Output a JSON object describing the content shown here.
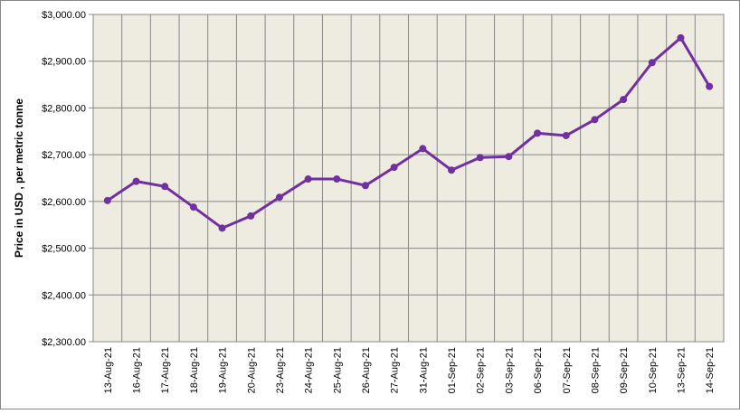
{
  "chart_data": {
    "type": "line",
    "y_axis_label": "Price in USD , per metric tonne",
    "categories": [
      "13-Aug-21",
      "16-Aug-21",
      "17-Aug-21",
      "18-Aug-21",
      "19-Aug-21",
      "20-Aug-21",
      "23-Aug-21",
      "24-Aug-21",
      "25-Aug-21",
      "26-Aug-21",
      "27-Aug-21",
      "31-Aug-21",
      "01-Sep-21",
      "02-Sep-21",
      "03-Sep-21",
      "06-Sep-21",
      "07-Sep-21",
      "08-Sep-21",
      "09-Sep-21",
      "10-Sep-21",
      "13-Sep-21",
      "14-Sep-21"
    ],
    "values": [
      2602,
      2643,
      2632,
      2588,
      2543,
      2569,
      2609,
      2648,
      2648,
      2634,
      2673,
      2713,
      2667,
      2694,
      2696,
      2746,
      2741,
      2775,
      2818,
      2897,
      2950,
      2846
    ],
    "color": "#7030a0",
    "ylim": [
      2300,
      3000
    ],
    "yticks": [
      {
        "value": 2300,
        "label": "$2,300.00"
      },
      {
        "value": 2400,
        "label": "$2,400.00"
      },
      {
        "value": 2500,
        "label": "$2,500.00"
      },
      {
        "value": 2600,
        "label": "$2,600.00"
      },
      {
        "value": 2700,
        "label": "$2,700.00"
      },
      {
        "value": 2800,
        "label": "$2,800.00"
      },
      {
        "value": 2900,
        "label": "$2,900.00"
      },
      {
        "value": 3000,
        "label": "$3,000.00"
      }
    ],
    "grid": true
  }
}
